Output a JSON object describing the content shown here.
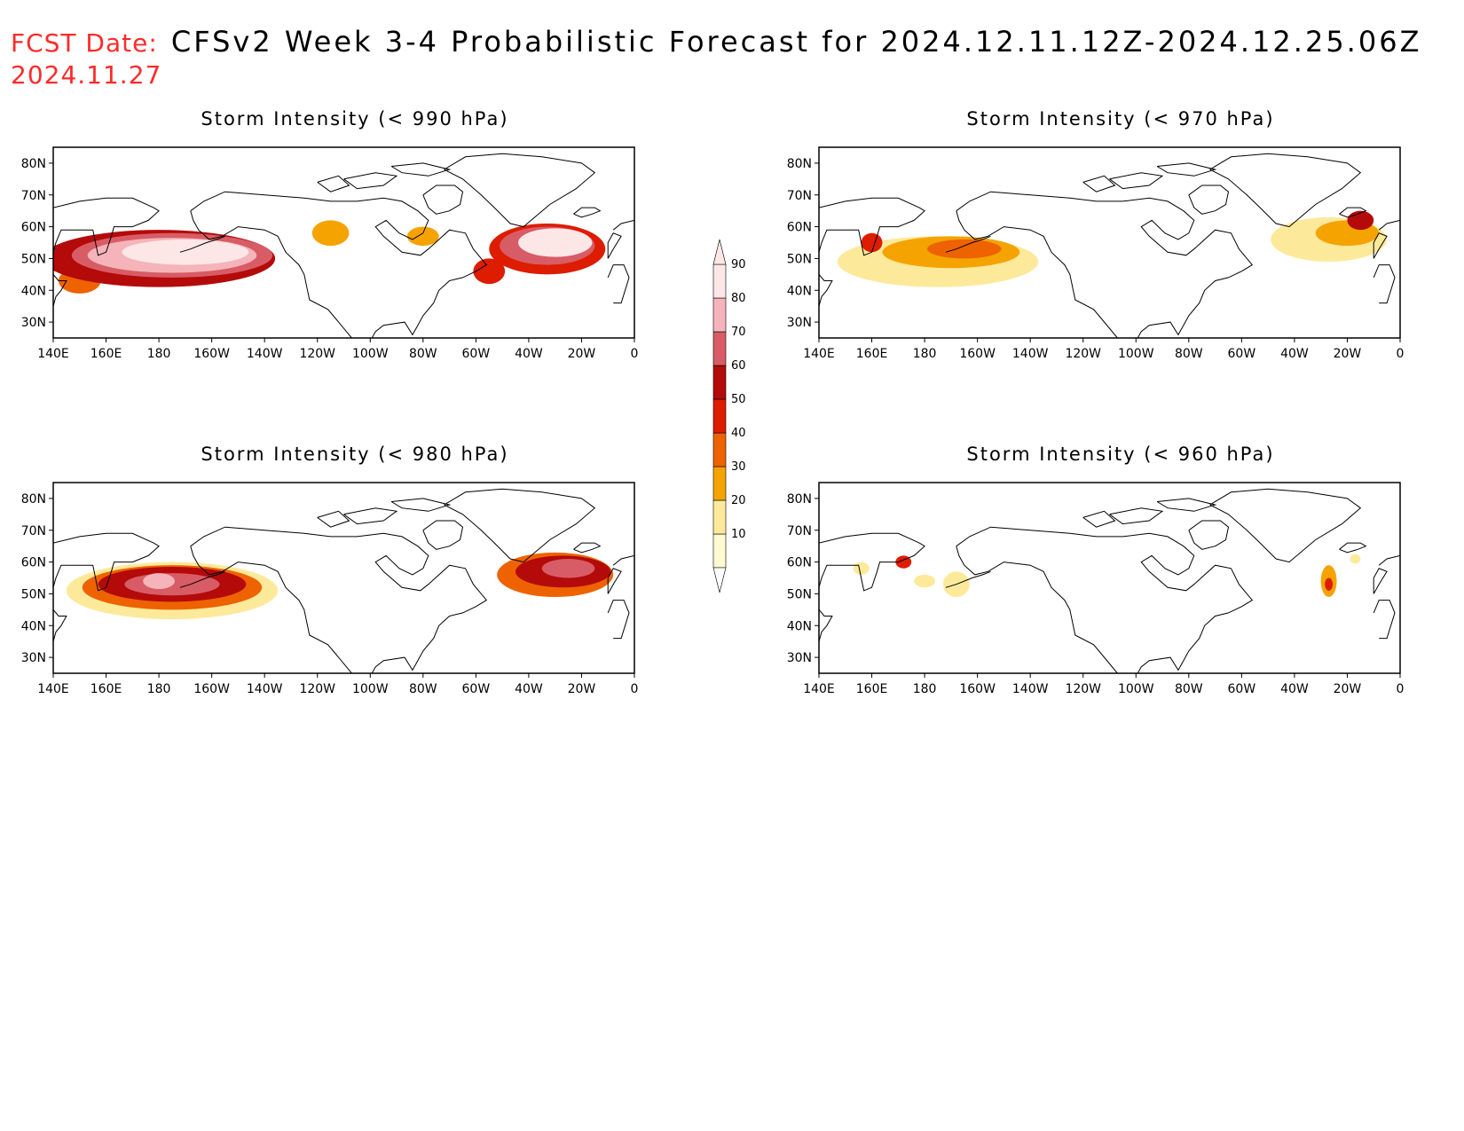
{
  "header": {
    "label": "FCST Date:",
    "title": "CFSv2 Week 3-4 Probabilistic Forecast for 2024.12.11.12Z-2024.12.25.06Z",
    "date": "2024.11.27"
  },
  "axes": {
    "x_ticks": [
      "140E",
      "160E",
      "180",
      "160W",
      "140W",
      "120W",
      "100W",
      "80W",
      "60W",
      "40W",
      "20W",
      "0"
    ],
    "y_ticks": [
      "80N",
      "70N",
      "60N",
      "50N",
      "40N",
      "30N"
    ]
  },
  "colorbar": {
    "levels": [
      "10",
      "20",
      "30",
      "40",
      "50",
      "60",
      "70",
      "80",
      "90"
    ],
    "colors": [
      "#fffad2",
      "#fde99a",
      "#f5a300",
      "#ee6200",
      "#dd1c00",
      "#b40a0a",
      "#d85c65",
      "#f4b4b9",
      "#fde6e6"
    ]
  },
  "panels": [
    {
      "title": "Storm Intensity (< 990 hPa)",
      "blobs": [
        {
          "lon": 180,
          "lat": 50,
          "rlon": 44,
          "rlat": 9,
          "level": 5
        },
        {
          "lon": 185,
          "lat": 51,
          "rlon": 38,
          "rlat": 7,
          "level": 6
        },
        {
          "lon": 185,
          "lat": 51,
          "rlon": 32,
          "rlat": 5.5,
          "level": 7
        },
        {
          "lon": 190,
          "lat": 52,
          "rlon": 24,
          "rlat": 4,
          "level": 8
        },
        {
          "lon": 150,
          "lat": 43,
          "rlon": 8,
          "rlat": 4,
          "level": 3
        },
        {
          "lon": 245,
          "lat": 58,
          "rlon": 7,
          "rlat": 4,
          "level": 2
        },
        {
          "lon": 280,
          "lat": 57,
          "rlon": 6,
          "rlat": 3,
          "level": 2
        },
        {
          "lon": 327,
          "lat": 53,
          "rlon": 22,
          "rlat": 8,
          "level": 4
        },
        {
          "lon": 327,
          "lat": 54,
          "rlon": 18,
          "rlat": 6,
          "level": 6
        },
        {
          "lon": 330,
          "lat": 55,
          "rlon": 14,
          "rlat": 4.5,
          "level": 8
        },
        {
          "lon": 305,
          "lat": 46,
          "rlon": 6,
          "rlat": 4,
          "level": 4
        }
      ]
    },
    {
      "title": "Storm Intensity (< 970 hPa)",
      "blobs": [
        {
          "lon": 185,
          "lat": 49,
          "rlon": 38,
          "rlat": 8,
          "level": 1
        },
        {
          "lon": 190,
          "lat": 52,
          "rlon": 26,
          "rlat": 5,
          "level": 2
        },
        {
          "lon": 195,
          "lat": 53,
          "rlon": 14,
          "rlat": 3,
          "level": 3
        },
        {
          "lon": 160,
          "lat": 55,
          "rlon": 4,
          "rlat": 3,
          "level": 4
        },
        {
          "lon": 333,
          "lat": 56,
          "rlon": 22,
          "rlat": 7,
          "level": 1
        },
        {
          "lon": 340,
          "lat": 58,
          "rlon": 12,
          "rlat": 4,
          "level": 2
        },
        {
          "lon": 345,
          "lat": 62,
          "rlon": 5,
          "rlat": 3,
          "level": 5
        }
      ]
    },
    {
      "title": "Storm Intensity (< 980 hPa)",
      "blobs": [
        {
          "lon": 185,
          "lat": 51,
          "rlon": 40,
          "rlat": 9,
          "level": 1
        },
        {
          "lon": 185,
          "lat": 52,
          "rlon": 34,
          "rlat": 7,
          "level": 3
        },
        {
          "lon": 185,
          "lat": 53,
          "rlon": 28,
          "rlat": 5.5,
          "level": 5
        },
        {
          "lon": 185,
          "lat": 53,
          "rlon": 18,
          "rlat": 3.5,
          "level": 6
        },
        {
          "lon": 180,
          "lat": 54,
          "rlon": 6,
          "rlat": 2.5,
          "level": 7
        },
        {
          "lon": 330,
          "lat": 56,
          "rlon": 22,
          "rlat": 7,
          "level": 3
        },
        {
          "lon": 333,
          "lat": 57,
          "rlon": 18,
          "rlat": 5,
          "level": 5
        },
        {
          "lon": 335,
          "lat": 58,
          "rlon": 10,
          "rlat": 3,
          "level": 6
        }
      ]
    },
    {
      "title": "Storm Intensity (< 960 hPa)",
      "blobs": [
        {
          "lon": 172,
          "lat": 60,
          "rlon": 3,
          "rlat": 2,
          "level": 4
        },
        {
          "lon": 156,
          "lat": 58,
          "rlon": 3,
          "rlat": 2,
          "level": 1
        },
        {
          "lon": 192,
          "lat": 53,
          "rlon": 5,
          "rlat": 4,
          "level": 1
        },
        {
          "lon": 180,
          "lat": 54,
          "rlon": 4,
          "rlat": 2,
          "level": 1
        },
        {
          "lon": 333,
          "lat": 54,
          "rlon": 3,
          "rlat": 5,
          "level": 2
        },
        {
          "lon": 333,
          "lat": 53,
          "rlon": 1.5,
          "rlat": 2,
          "level": 4
        },
        {
          "lon": 343,
          "lat": 61,
          "rlon": 2,
          "rlat": 1.5,
          "level": 1
        }
      ]
    }
  ]
}
